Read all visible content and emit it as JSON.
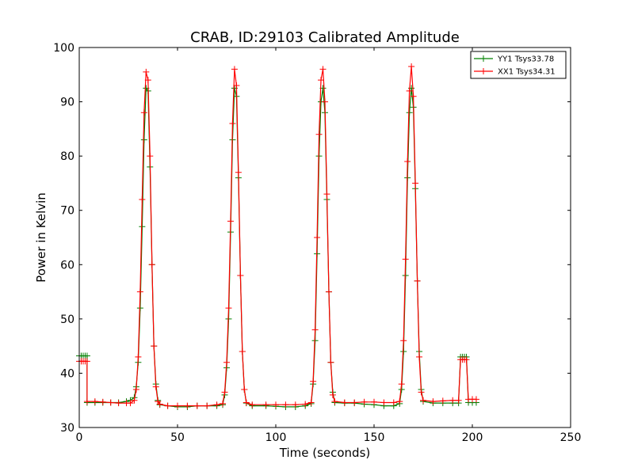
{
  "chart_data": {
    "type": "line",
    "title": "CRAB, ID:29103 Calibrated Amplitude",
    "xlabel": "Time (seconds)",
    "ylabel": "Power in Kelvin",
    "xlim": [
      0,
      250
    ],
    "ylim": [
      30,
      100
    ],
    "xticks": [
      0,
      50,
      100,
      150,
      200,
      250
    ],
    "yticks": [
      30,
      40,
      50,
      60,
      70,
      80,
      90,
      100
    ],
    "grid": false,
    "legend_position": "top-right",
    "marker": "plus",
    "series": [
      {
        "name": "YY1 Tsys33.78",
        "color": "#008000",
        "points": [
          [
            0,
            43.2
          ],
          [
            1,
            43.2
          ],
          [
            2,
            43.2
          ],
          [
            3,
            43.2
          ],
          [
            4,
            43.2
          ],
          [
            4,
            34.6
          ],
          [
            8,
            34.6
          ],
          [
            12,
            34.6
          ],
          [
            16,
            34.6
          ],
          [
            20,
            34.6
          ],
          [
            24,
            34.8
          ],
          [
            26,
            35.0
          ],
          [
            28,
            35.5
          ],
          [
            29,
            37.5
          ],
          [
            30,
            42.0
          ],
          [
            31,
            52.0
          ],
          [
            32,
            67.0
          ],
          [
            33,
            83.0
          ],
          [
            34,
            92.5
          ],
          [
            35,
            92.0
          ],
          [
            36,
            78.0
          ],
          [
            37,
            60.0
          ],
          [
            38,
            45.0
          ],
          [
            39,
            38.0
          ],
          [
            40,
            35.0
          ],
          [
            41,
            34.2
          ],
          [
            45,
            34.0
          ],
          [
            50,
            33.8
          ],
          [
            55,
            33.8
          ],
          [
            60,
            34.0
          ],
          [
            65,
            34.0
          ],
          [
            70,
            34.0
          ],
          [
            73,
            34.2
          ],
          [
            74,
            36.0
          ],
          [
            75,
            41.0
          ],
          [
            76,
            50.0
          ],
          [
            77,
            66.0
          ],
          [
            78,
            83.0
          ],
          [
            79,
            92.5
          ],
          [
            80,
            91.0
          ],
          [
            81,
            76.0
          ],
          [
            82,
            58.0
          ],
          [
            83,
            44.0
          ],
          [
            84,
            37.0
          ],
          [
            85,
            34.5
          ],
          [
            88,
            34.0
          ],
          [
            95,
            34.0
          ],
          [
            100,
            33.9
          ],
          [
            105,
            33.8
          ],
          [
            110,
            33.8
          ],
          [
            115,
            34.0
          ],
          [
            118,
            34.4
          ],
          [
            119,
            38.0
          ],
          [
            120,
            46.0
          ],
          [
            121,
            62.0
          ],
          [
            122,
            80.0
          ],
          [
            123,
            90.0
          ],
          [
            124,
            92.5
          ],
          [
            125,
            88.0
          ],
          [
            126,
            72.0
          ],
          [
            127,
            55.0
          ],
          [
            128,
            42.0
          ],
          [
            129,
            36.5
          ],
          [
            130,
            34.6
          ],
          [
            135,
            34.5
          ],
          [
            140,
            34.5
          ],
          [
            145,
            34.3
          ],
          [
            150,
            34.2
          ],
          [
            155,
            34.0
          ],
          [
            160,
            34.0
          ],
          [
            163,
            34.4
          ],
          [
            164,
            37.0
          ],
          [
            165,
            44.0
          ],
          [
            166,
            58.0
          ],
          [
            167,
            76.0
          ],
          [
            168,
            88.0
          ],
          [
            169,
            92.5
          ],
          [
            170,
            89.0
          ],
          [
            171,
            74.0
          ],
          [
            172,
            57.0
          ],
          [
            173,
            44.0
          ],
          [
            174,
            37.0
          ],
          [
            175,
            34.8
          ],
          [
            180,
            34.5
          ],
          [
            185,
            34.5
          ],
          [
            190,
            34.5
          ],
          [
            193,
            34.5
          ],
          [
            194,
            43.0
          ],
          [
            195,
            43.0
          ],
          [
            196,
            43.0
          ],
          [
            197,
            43.0
          ],
          [
            198,
            34.6
          ],
          [
            200,
            34.6
          ],
          [
            202,
            34.6
          ]
        ]
      },
      {
        "name": "XX1 Tsys34.31",
        "color": "#ff0000",
        "points": [
          [
            0,
            42.2
          ],
          [
            1,
            42.2
          ],
          [
            2,
            42.2
          ],
          [
            3,
            42.2
          ],
          [
            4,
            42.2
          ],
          [
            4,
            34.8
          ],
          [
            8,
            34.8
          ],
          [
            12,
            34.7
          ],
          [
            16,
            34.6
          ],
          [
            20,
            34.5
          ],
          [
            24,
            34.5
          ],
          [
            26,
            34.5
          ],
          [
            28,
            35.0
          ],
          [
            29,
            37.0
          ],
          [
            30,
            43.0
          ],
          [
            31,
            55.0
          ],
          [
            32,
            72.0
          ],
          [
            33,
            88.0
          ],
          [
            34,
            95.5
          ],
          [
            35,
            94.0
          ],
          [
            36,
            80.0
          ],
          [
            37,
            60.0
          ],
          [
            38,
            45.0
          ],
          [
            39,
            37.5
          ],
          [
            40,
            34.8
          ],
          [
            41,
            34.3
          ],
          [
            45,
            34.0
          ],
          [
            50,
            34.0
          ],
          [
            55,
            34.0
          ],
          [
            60,
            34.0
          ],
          [
            65,
            34.0
          ],
          [
            70,
            34.2
          ],
          [
            73,
            34.4
          ],
          [
            74,
            36.5
          ],
          [
            75,
            42.0
          ],
          [
            76,
            52.0
          ],
          [
            77,
            68.0
          ],
          [
            78,
            86.0
          ],
          [
            79,
            96.0
          ],
          [
            80,
            93.0
          ],
          [
            81,
            77.0
          ],
          [
            82,
            58.0
          ],
          [
            83,
            44.0
          ],
          [
            84,
            37.0
          ],
          [
            85,
            34.6
          ],
          [
            88,
            34.2
          ],
          [
            95,
            34.2
          ],
          [
            100,
            34.2
          ],
          [
            105,
            34.2
          ],
          [
            110,
            34.2
          ],
          [
            115,
            34.3
          ],
          [
            118,
            34.6
          ],
          [
            119,
            38.5
          ],
          [
            120,
            48.0
          ],
          [
            121,
            65.0
          ],
          [
            122,
            84.0
          ],
          [
            123,
            94.0
          ],
          [
            124,
            96.0
          ],
          [
            125,
            90.0
          ],
          [
            126,
            73.0
          ],
          [
            127,
            55.0
          ],
          [
            128,
            42.0
          ],
          [
            129,
            36.0
          ],
          [
            130,
            34.8
          ],
          [
            135,
            34.6
          ],
          [
            140,
            34.6
          ],
          [
            145,
            34.7
          ],
          [
            150,
            34.7
          ],
          [
            155,
            34.6
          ],
          [
            160,
            34.6
          ],
          [
            163,
            34.8
          ],
          [
            164,
            38.0
          ],
          [
            165,
            46.0
          ],
          [
            166,
            61.0
          ],
          [
            167,
            79.0
          ],
          [
            168,
            92.0
          ],
          [
            169,
            96.5
          ],
          [
            170,
            91.0
          ],
          [
            171,
            75.0
          ],
          [
            172,
            57.0
          ],
          [
            173,
            43.0
          ],
          [
            174,
            36.5
          ],
          [
            175,
            35.0
          ],
          [
            180,
            34.8
          ],
          [
            185,
            34.9
          ],
          [
            190,
            35.0
          ],
          [
            193,
            35.0
          ],
          [
            194,
            42.5
          ],
          [
            195,
            42.5
          ],
          [
            196,
            42.5
          ],
          [
            197,
            42.5
          ],
          [
            198,
            35.2
          ],
          [
            200,
            35.2
          ],
          [
            202,
            35.2
          ]
        ]
      }
    ]
  }
}
